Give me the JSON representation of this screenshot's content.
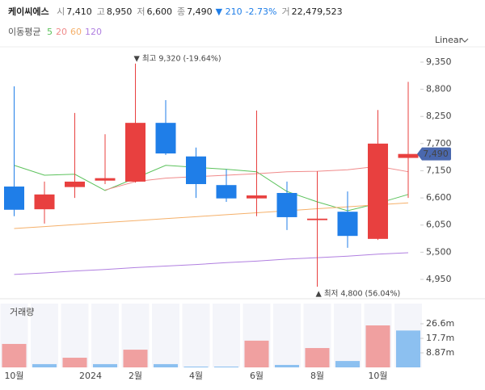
{
  "header": {
    "name": "케이씨에스",
    "items": [
      {
        "label": "시",
        "value": "7,410"
      },
      {
        "label": "고",
        "value": "8,950"
      },
      {
        "label": "저",
        "value": "6,600"
      },
      {
        "label": "종",
        "value": "7,490"
      }
    ],
    "change": "▼ 210",
    "change_pct": "-2.73%",
    "volume": {
      "label": "거",
      "value": "22,479,523"
    },
    "scale_mode": "Linear"
  },
  "chart_data": [
    {
      "type": "candlestick",
      "ma_label": "이동평균",
      "categories": [
        "10월",
        null,
        null,
        "2024",
        "2월",
        null,
        "4월",
        null,
        "6월",
        null,
        "8월",
        null,
        "10월",
        null
      ],
      "open": [
        6830,
        6370,
        6820,
        6950,
        6930,
        8120,
        7440,
        6860,
        6590,
        6700,
        6150,
        6320,
        5770,
        7410
      ],
      "high": [
        8860,
        6930,
        8320,
        7890,
        9320,
        8580,
        7620,
        7180,
        8370,
        6930,
        7140,
        6730,
        8380,
        8950
      ],
      "low": [
        6230,
        6080,
        6600,
        6880,
        6910,
        7470,
        6600,
        6520,
        6230,
        5950,
        4800,
        5590,
        5750,
        6600
      ],
      "close": [
        6360,
        6670,
        6930,
        7000,
        8120,
        7500,
        6880,
        6590,
        6650,
        6210,
        6180,
        5830,
        7700,
        7490
      ],
      "up_color": "#e8403f",
      "down_color": "#1f7ee8",
      "series": [
        {
          "name": "5",
          "color": "#5cc25c",
          "values": [
            7260,
            7060,
            7080,
            6750,
            7000,
            7260,
            7220,
            7180,
            7130,
            6730,
            6520,
            6340,
            6490,
            6670
          ]
        },
        {
          "name": "20",
          "color": "#f08a8a",
          "values": [
            null,
            null,
            null,
            6760,
            6930,
            7000,
            7030,
            7060,
            7090,
            7130,
            7140,
            7170,
            7240,
            7130
          ]
        },
        {
          "name": "60",
          "color": "#f5b06a",
          "values": [
            5980,
            6020,
            6060,
            6100,
            6140,
            6180,
            6220,
            6260,
            6300,
            6340,
            6380,
            6420,
            6460,
            6500
          ]
        },
        {
          "name": "120",
          "color": "#b07fe0",
          "values": [
            5050,
            5080,
            5120,
            5150,
            5190,
            5220,
            5250,
            5290,
            5320,
            5360,
            5390,
            5420,
            5460,
            5490
          ]
        }
      ],
      "annotations": [
        {
          "text": "▼ 최고 9,320 (-19.64%)",
          "kind": "high"
        },
        {
          "text": "▲ 최저 4,800 (56.04%)",
          "kind": "low"
        }
      ],
      "ylim": [
        4590,
        9660
      ],
      "yticks": [
        {
          "value": 9350,
          "label": "9,350"
        },
        {
          "value": 8800,
          "label": "8,800"
        },
        {
          "value": 8250,
          "label": "8,250"
        },
        {
          "value": 7700,
          "label": "7,700"
        },
        {
          "value": 7150,
          "label": "7,150"
        },
        {
          "value": 6600,
          "label": "6,600"
        },
        {
          "value": 6050,
          "label": "6,050"
        },
        {
          "value": 5500,
          "label": "5,500"
        },
        {
          "value": 4950,
          "label": "4,950"
        }
      ]
    },
    {
      "type": "bar",
      "title": "거래량",
      "values": [
        14.3,
        2.0,
        5.9,
        2.0,
        10.8,
        2.0,
        0.5,
        0.5,
        16.3,
        1.5,
        11.8,
        3.9,
        25.6,
        22.48
      ],
      "colors": [
        "#f0a0a0",
        "#8cc0f0",
        "#f0a0a0",
        "#8cc0f0",
        "#f0a0a0",
        "#8cc0f0",
        "#8cc0f0",
        "#8cc0f0",
        "#f0a0a0",
        "#8cc0f0",
        "#f0a0a0",
        "#8cc0f0",
        "#f0a0a0",
        "#8cc0f0"
      ],
      "ylim": [
        0,
        38.9
      ],
      "yticks": [
        {
          "value": 8.87,
          "label": "8.87m"
        },
        {
          "value": 17.7,
          "label": "17.7m"
        },
        {
          "value": 26.6,
          "label": "26.6m"
        }
      ]
    }
  ]
}
